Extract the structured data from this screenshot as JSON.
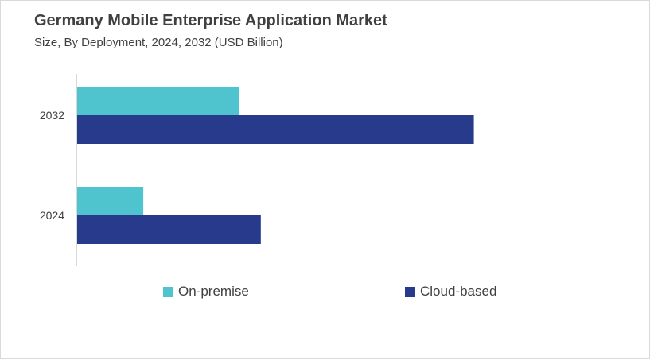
{
  "title": "Germany Mobile Enterprise Application Market",
  "subtitle": "Size, By Deployment, 2024, 2032 (USD Billion)",
  "chart_data": {
    "type": "bar",
    "orientation": "horizontal",
    "categories": [
      "2032",
      "2024"
    ],
    "series": [
      {
        "name": "On-premise",
        "color": "#4FC4CF",
        "values": [
          2.2,
          0.9
        ]
      },
      {
        "name": "Cloud-based",
        "color": "#283A8C",
        "values": [
          5.4,
          2.5
        ]
      }
    ],
    "xlim": [
      0,
      7.3
    ],
    "grid": false,
    "legend_position": "bottom"
  }
}
